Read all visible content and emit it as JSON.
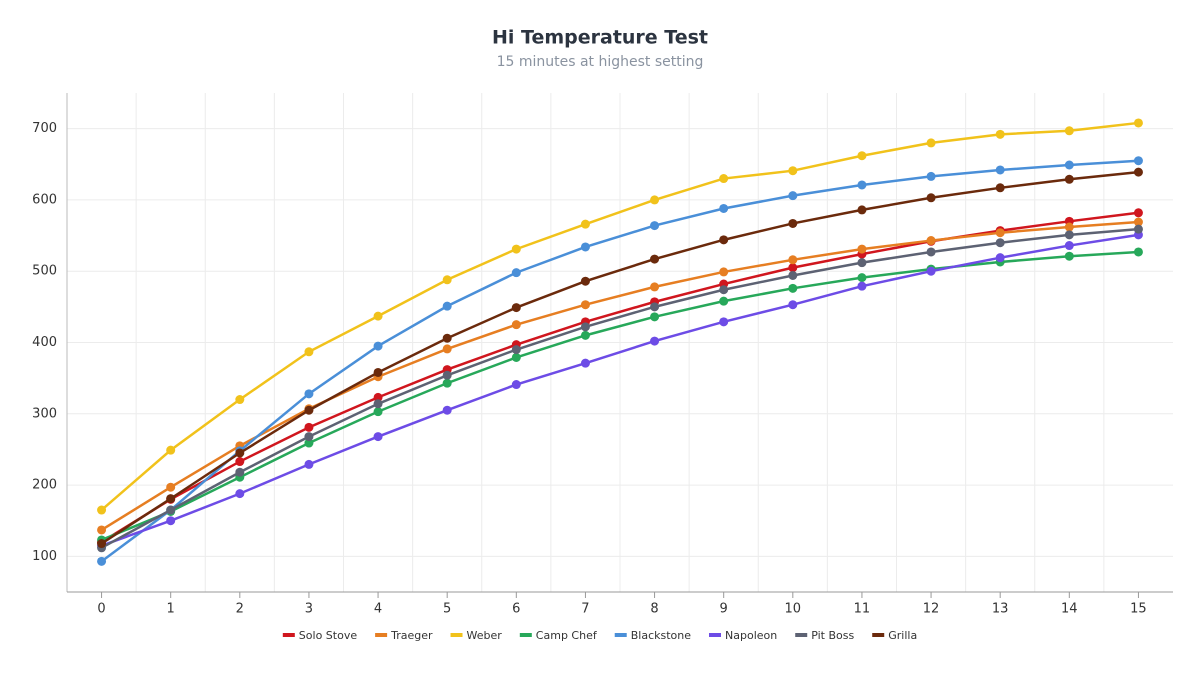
{
  "chart_data": {
    "type": "line",
    "title": "Hi Temperature Test",
    "subtitle": "15 minutes at highest setting",
    "x": [
      0,
      1,
      2,
      3,
      4,
      5,
      6,
      7,
      8,
      9,
      10,
      11,
      12,
      13,
      14,
      15
    ],
    "xlim": [
      -0.5,
      15.5
    ],
    "xticks": [
      0,
      1,
      2,
      3,
      4,
      5,
      6,
      7,
      8,
      9,
      10,
      11,
      12,
      13,
      14,
      15
    ],
    "ylim": [
      50,
      750
    ],
    "yticks": [
      100,
      200,
      300,
      400,
      500,
      600,
      700
    ],
    "grid": true,
    "legend": "bottom",
    "series": [
      {
        "name": "Solo Stove",
        "color": "#d0161e",
        "values": [
          120,
          180,
          233,
          281,
          323,
          362,
          397,
          429,
          457,
          482,
          505,
          524,
          542,
          557,
          570,
          582
        ]
      },
      {
        "name": "Traeger",
        "color": "#e67e22",
        "values": [
          137,
          197,
          255,
          307,
          352,
          391,
          425,
          453,
          478,
          499,
          516,
          531,
          543,
          554,
          562,
          569
        ]
      },
      {
        "name": "Weber",
        "color": "#f1c21b",
        "values": [
          165,
          249,
          320,
          387,
          437,
          488,
          531,
          566,
          600,
          630,
          641,
          662,
          680,
          692,
          697,
          708
        ]
      },
      {
        "name": "Camp Chef",
        "color": "#27a85a",
        "values": [
          123,
          163,
          211,
          259,
          303,
          343,
          379,
          410,
          436,
          458,
          476,
          491,
          503,
          513,
          521,
          527
        ]
      },
      {
        "name": "Blackstone",
        "color": "#4a8fd8",
        "values": [
          93,
          165,
          248,
          328,
          395,
          451,
          498,
          534,
          564,
          588,
          606,
          621,
          633,
          642,
          649,
          655
        ]
      },
      {
        "name": "Napoleon",
        "color": "#6d4ce6",
        "values": [
          115,
          150,
          188,
          229,
          268,
          305,
          341,
          371,
          402,
          429,
          453,
          479,
          500,
          519,
          536,
          551
        ]
      },
      {
        "name": "Pit Boss",
        "color": "#5d6273",
        "values": [
          112,
          165,
          218,
          268,
          314,
          354,
          390,
          422,
          450,
          474,
          494,
          512,
          527,
          540,
          551,
          559
        ]
      },
      {
        "name": "Grilla",
        "color": "#6b2a0c",
        "values": [
          118,
          181,
          245,
          305,
          358,
          406,
          449,
          486,
          517,
          544,
          567,
          586,
          603,
          617,
          629,
          639
        ]
      }
    ]
  }
}
